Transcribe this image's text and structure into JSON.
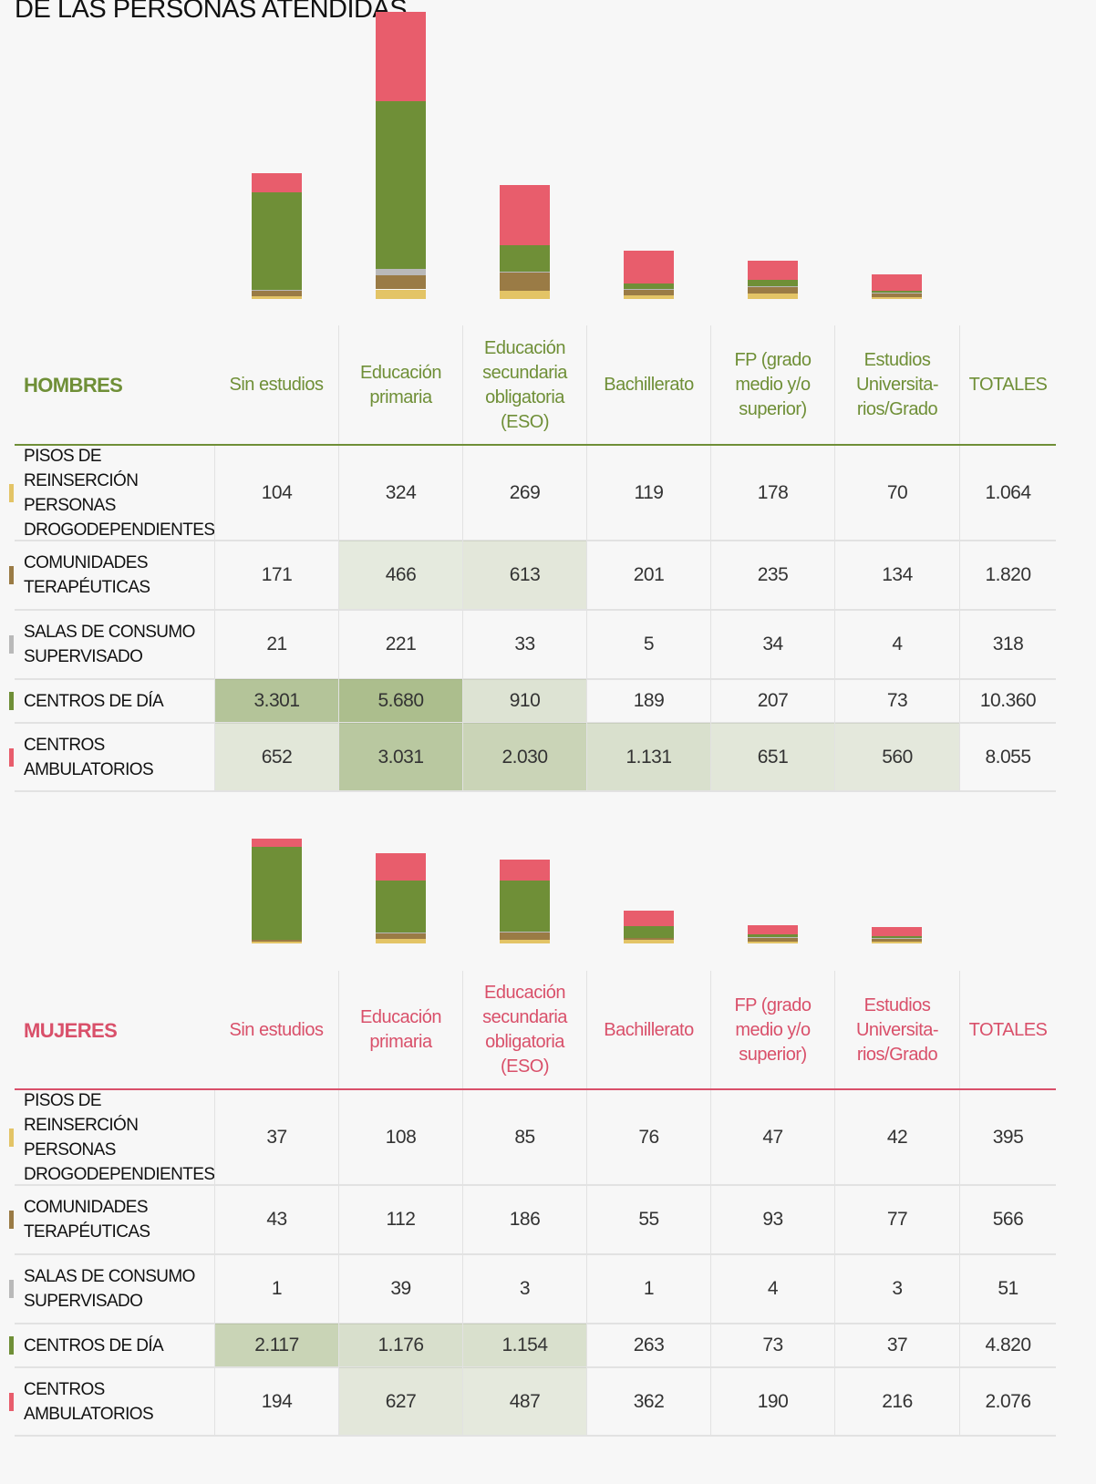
{
  "title": "DE LAS PERSONAS ATENDIDAS",
  "tables": [
    {
      "heading": "HOMBRES",
      "color": "#6f8f37",
      "columns": [
        "Sin estudios",
        "Educación primaria",
        "Educación secundaria obligatoria (ESO)",
        "Bachillerato",
        "FP (grado medio y/o superior)",
        "Estudios Universita-rios/Grado",
        "TOTALES"
      ],
      "rows": [
        {
          "label": "PISOS DE REINSERCIÓN PERSONAS DROGODEPENDIENTES",
          "color": "#e3c466",
          "values": [
            104,
            324,
            269,
            119,
            178,
            70,
            1064
          ],
          "value_labels": [
            "104",
            "324",
            "269",
            "119",
            "178",
            "70",
            "1.064"
          ]
        },
        {
          "label": "COMUNIDADES TERAPÉUTICAS",
          "color": "#9a7b45",
          "values": [
            171,
            466,
            613,
            201,
            235,
            134,
            1820
          ],
          "value_labels": [
            "171",
            "466",
            "613",
            "201",
            "235",
            "134",
            "1.820"
          ]
        },
        {
          "label": "SALAS DE CONSUMO SUPERVISADO",
          "color": "#b9b9b9",
          "values": [
            21,
            221,
            33,
            5,
            34,
            4,
            318
          ],
          "value_labels": [
            "21",
            "221",
            "33",
            "5",
            "34",
            "4",
            "318"
          ]
        },
        {
          "label": "CENTROS DE DÍA",
          "color": "#6f8f37",
          "values": [
            3301,
            5680,
            910,
            189,
            207,
            73,
            10360
          ],
          "value_labels": [
            "3.301",
            "5.680",
            "910",
            "189",
            "207",
            "73",
            "10.360"
          ]
        },
        {
          "label": "CENTROS AMBULATORIOS",
          "color": "#e85d6c",
          "values": [
            652,
            3031,
            2030,
            1131,
            651,
            560,
            8055
          ],
          "value_labels": [
            "652",
            "3.031",
            "2.030",
            "1.131",
            "651",
            "560",
            "8.055"
          ]
        }
      ]
    },
    {
      "heading": "MUJERES",
      "color": "#d9506a",
      "columns": [
        "Sin estudios",
        "Educación primaria",
        "Educación secundaria obligatoria (ESO)",
        "Bachillerato",
        "FP (grado medio y/o superior)",
        "Estudios Universita-rios/Grado",
        "TOTALES"
      ],
      "rows": [
        {
          "label": "PISOS DE REINSERCIÓN PERSONAS DROGODEPENDIENTES",
          "color": "#e3c466",
          "values": [
            37,
            108,
            85,
            76,
            47,
            42,
            395
          ],
          "value_labels": [
            "37",
            "108",
            "85",
            "76",
            "47",
            "42",
            "395"
          ]
        },
        {
          "label": "COMUNIDADES TERAPÉUTICAS",
          "color": "#9a7b45",
          "values": [
            43,
            112,
            186,
            55,
            93,
            77,
            566
          ],
          "value_labels": [
            "43",
            "112",
            "186",
            "55",
            "93",
            "77",
            "566"
          ]
        },
        {
          "label": "SALAS DE CONSUMO SUPERVISADO",
          "color": "#b9b9b9",
          "values": [
            1,
            39,
            3,
            1,
            4,
            3,
            51
          ],
          "value_labels": [
            "1",
            "39",
            "3",
            "1",
            "4",
            "3",
            "51"
          ]
        },
        {
          "label": "CENTROS DE DÍA",
          "color": "#6f8f37",
          "values": [
            2117,
            1176,
            1154,
            263,
            73,
            37,
            4820
          ],
          "value_labels": [
            "2.117",
            "1.176",
            "1.154",
            "263",
            "73",
            "37",
            "4.820"
          ]
        },
        {
          "label": "CENTROS AMBULATORIOS",
          "color": "#e85d6c",
          "values": [
            194,
            627,
            487,
            362,
            190,
            216,
            2076
          ],
          "value_labels": [
            "194",
            "627",
            "487",
            "362",
            "190",
            "216",
            "2.076"
          ]
        }
      ]
    }
  ]
}
